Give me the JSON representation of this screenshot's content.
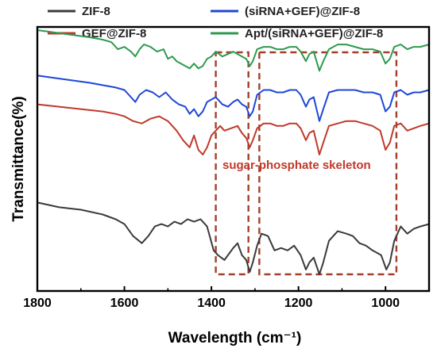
{
  "chart_data": {
    "type": "line",
    "xlabel": "Wavelength (cm⁻¹)",
    "ylabel": "Transmittance(%)",
    "xlim": [
      1800,
      900
    ],
    "x_reversed": true,
    "x_ticks": [
      "1800",
      "1600",
      "1400",
      "1200",
      "1000"
    ],
    "y_ticks_shown": false,
    "grid": false,
    "legend_position": "top",
    "series": [
      {
        "name": "ZIF-8",
        "color": "#3a3a3a",
        "points": [
          [
            1800,
            0.3
          ],
          [
            1750,
            0.28
          ],
          [
            1700,
            0.27
          ],
          [
            1650,
            0.25
          ],
          [
            1620,
            0.23
          ],
          [
            1600,
            0.21
          ],
          [
            1580,
            0.16
          ],
          [
            1560,
            0.13
          ],
          [
            1545,
            0.16
          ],
          [
            1530,
            0.2
          ],
          [
            1515,
            0.21
          ],
          [
            1500,
            0.2
          ],
          [
            1485,
            0.22
          ],
          [
            1470,
            0.21
          ],
          [
            1455,
            0.23
          ],
          [
            1440,
            0.22
          ],
          [
            1425,
            0.23
          ],
          [
            1410,
            0.2
          ],
          [
            1395,
            0.1
          ],
          [
            1385,
            0.08
          ],
          [
            1370,
            0.06
          ],
          [
            1350,
            0.11
          ],
          [
            1340,
            0.13
          ],
          [
            1330,
            0.08
          ],
          [
            1320,
            0.06
          ],
          [
            1312,
            0.01
          ],
          [
            1305,
            0.05
          ],
          [
            1295,
            0.12
          ],
          [
            1285,
            0.17
          ],
          [
            1270,
            0.16
          ],
          [
            1255,
            0.1
          ],
          [
            1240,
            0.11
          ],
          [
            1225,
            0.1
          ],
          [
            1210,
            0.12
          ],
          [
            1195,
            0.08
          ],
          [
            1183,
            0.02
          ],
          [
            1175,
            0.05
          ],
          [
            1165,
            0.07
          ],
          [
            1152,
            0.0
          ],
          [
            1143,
            0.05
          ],
          [
            1130,
            0.14
          ],
          [
            1110,
            0.18
          ],
          [
            1090,
            0.17
          ],
          [
            1075,
            0.16
          ],
          [
            1060,
            0.13
          ],
          [
            1045,
            0.12
          ],
          [
            1030,
            0.1
          ],
          [
            1010,
            0.08
          ],
          [
            998,
            0.02
          ],
          [
            990,
            0.05
          ],
          [
            980,
            0.14
          ],
          [
            965,
            0.2
          ],
          [
            950,
            0.17
          ],
          [
            935,
            0.19
          ],
          [
            920,
            0.2
          ],
          [
            900,
            0.21
          ]
        ]
      },
      {
        "name": "GEF@ZIF-8",
        "color": "#c0392b",
        "points": [
          [
            1800,
            0.71
          ],
          [
            1750,
            0.7
          ],
          [
            1700,
            0.69
          ],
          [
            1650,
            0.68
          ],
          [
            1620,
            0.67
          ],
          [
            1600,
            0.66
          ],
          [
            1580,
            0.64
          ],
          [
            1560,
            0.63
          ],
          [
            1540,
            0.65
          ],
          [
            1520,
            0.66
          ],
          [
            1500,
            0.64
          ],
          [
            1480,
            0.6
          ],
          [
            1465,
            0.56
          ],
          [
            1450,
            0.53
          ],
          [
            1440,
            0.58
          ],
          [
            1430,
            0.52
          ],
          [
            1420,
            0.5
          ],
          [
            1410,
            0.53
          ],
          [
            1400,
            0.58
          ],
          [
            1390,
            0.6
          ],
          [
            1380,
            0.62
          ],
          [
            1370,
            0.6
          ],
          [
            1355,
            0.61
          ],
          [
            1340,
            0.62
          ],
          [
            1330,
            0.59
          ],
          [
            1320,
            0.57
          ],
          [
            1312,
            0.53
          ],
          [
            1305,
            0.56
          ],
          [
            1295,
            0.61
          ],
          [
            1280,
            0.63
          ],
          [
            1265,
            0.63
          ],
          [
            1250,
            0.62
          ],
          [
            1235,
            0.62
          ],
          [
            1220,
            0.63
          ],
          [
            1205,
            0.63
          ],
          [
            1195,
            0.61
          ],
          [
            1183,
            0.56
          ],
          [
            1175,
            0.59
          ],
          [
            1165,
            0.6
          ],
          [
            1152,
            0.5
          ],
          [
            1143,
            0.55
          ],
          [
            1130,
            0.62
          ],
          [
            1110,
            0.63
          ],
          [
            1090,
            0.64
          ],
          [
            1070,
            0.64
          ],
          [
            1050,
            0.63
          ],
          [
            1030,
            0.62
          ],
          [
            1012,
            0.6
          ],
          [
            1000,
            0.52
          ],
          [
            990,
            0.55
          ],
          [
            980,
            0.62
          ],
          [
            965,
            0.63
          ],
          [
            950,
            0.6
          ],
          [
            935,
            0.61
          ],
          [
            920,
            0.62
          ],
          [
            900,
            0.63
          ]
        ]
      },
      {
        "name": "(siRNA+GEF)@ZIF-8",
        "color": "#1f47d6",
        "points": [
          [
            1800,
            0.83
          ],
          [
            1760,
            0.82
          ],
          [
            1720,
            0.81
          ],
          [
            1680,
            0.8
          ],
          [
            1650,
            0.79
          ],
          [
            1620,
            0.78
          ],
          [
            1600,
            0.77
          ],
          [
            1585,
            0.74
          ],
          [
            1575,
            0.72
          ],
          [
            1565,
            0.75
          ],
          [
            1550,
            0.77
          ],
          [
            1535,
            0.76
          ],
          [
            1520,
            0.74
          ],
          [
            1505,
            0.76
          ],
          [
            1490,
            0.73
          ],
          [
            1475,
            0.71
          ],
          [
            1460,
            0.7
          ],
          [
            1450,
            0.67
          ],
          [
            1440,
            0.69
          ],
          [
            1430,
            0.66
          ],
          [
            1420,
            0.68
          ],
          [
            1410,
            0.72
          ],
          [
            1400,
            0.73
          ],
          [
            1390,
            0.74
          ],
          [
            1375,
            0.71
          ],
          [
            1362,
            0.7
          ],
          [
            1350,
            0.72
          ],
          [
            1340,
            0.73
          ],
          [
            1330,
            0.71
          ],
          [
            1320,
            0.7
          ],
          [
            1312,
            0.66
          ],
          [
            1305,
            0.68
          ],
          [
            1295,
            0.75
          ],
          [
            1280,
            0.77
          ],
          [
            1265,
            0.77
          ],
          [
            1250,
            0.76
          ],
          [
            1235,
            0.76
          ],
          [
            1220,
            0.77
          ],
          [
            1205,
            0.77
          ],
          [
            1195,
            0.75
          ],
          [
            1183,
            0.7
          ],
          [
            1175,
            0.73
          ],
          [
            1165,
            0.74
          ],
          [
            1152,
            0.64
          ],
          [
            1143,
            0.69
          ],
          [
            1130,
            0.76
          ],
          [
            1110,
            0.77
          ],
          [
            1090,
            0.77
          ],
          [
            1070,
            0.77
          ],
          [
            1050,
            0.76
          ],
          [
            1030,
            0.76
          ],
          [
            1012,
            0.75
          ],
          [
            1000,
            0.68
          ],
          [
            990,
            0.7
          ],
          [
            980,
            0.76
          ],
          [
            965,
            0.77
          ],
          [
            950,
            0.75
          ],
          [
            935,
            0.76
          ],
          [
            920,
            0.76
          ],
          [
            900,
            0.77
          ]
        ]
      },
      {
        "name": "Apt/(siRNA+GEF)@ZIF-8",
        "color": "#2e9a4e",
        "points": [
          [
            1800,
            1.02
          ],
          [
            1760,
            1.01
          ],
          [
            1720,
            1.0
          ],
          [
            1680,
            0.99
          ],
          [
            1650,
            0.98
          ],
          [
            1630,
            0.97
          ],
          [
            1615,
            0.94
          ],
          [
            1600,
            0.95
          ],
          [
            1585,
            0.93
          ],
          [
            1575,
            0.91
          ],
          [
            1565,
            0.94
          ],
          [
            1555,
            0.96
          ],
          [
            1540,
            0.95
          ],
          [
            1525,
            0.93
          ],
          [
            1510,
            0.94
          ],
          [
            1500,
            0.9
          ],
          [
            1490,
            0.91
          ],
          [
            1480,
            0.89
          ],
          [
            1470,
            0.88
          ],
          [
            1460,
            0.87
          ],
          [
            1450,
            0.86
          ],
          [
            1440,
            0.88
          ],
          [
            1430,
            0.86
          ],
          [
            1420,
            0.87
          ],
          [
            1410,
            0.9
          ],
          [
            1400,
            0.91
          ],
          [
            1390,
            0.93
          ],
          [
            1375,
            0.91
          ],
          [
            1362,
            0.92
          ],
          [
            1350,
            0.93
          ],
          [
            1340,
            0.92
          ],
          [
            1330,
            0.91
          ],
          [
            1320,
            0.9
          ],
          [
            1312,
            0.87
          ],
          [
            1305,
            0.89
          ],
          [
            1295,
            0.94
          ],
          [
            1280,
            0.95
          ],
          [
            1265,
            0.95
          ],
          [
            1250,
            0.94
          ],
          [
            1235,
            0.94
          ],
          [
            1220,
            0.95
          ],
          [
            1205,
            0.95
          ],
          [
            1195,
            0.93
          ],
          [
            1183,
            0.89
          ],
          [
            1175,
            0.92
          ],
          [
            1165,
            0.93
          ],
          [
            1152,
            0.85
          ],
          [
            1143,
            0.89
          ],
          [
            1130,
            0.94
          ],
          [
            1110,
            0.96
          ],
          [
            1090,
            0.96
          ],
          [
            1070,
            0.95
          ],
          [
            1050,
            0.94
          ],
          [
            1030,
            0.94
          ],
          [
            1012,
            0.93
          ],
          [
            1000,
            0.88
          ],
          [
            990,
            0.9
          ],
          [
            980,
            0.95
          ],
          [
            965,
            0.96
          ],
          [
            950,
            0.94
          ],
          [
            935,
            0.95
          ],
          [
            920,
            0.95
          ],
          [
            900,
            0.96
          ]
        ]
      }
    ],
    "highlight_boxes": [
      {
        "x_from": 1390,
        "x_to": 1315
      },
      {
        "x_from": 1290,
        "x_to": 975
      }
    ],
    "annotation": {
      "text": "sugar-phosphate skeleton",
      "color": "#c0392b"
    }
  }
}
